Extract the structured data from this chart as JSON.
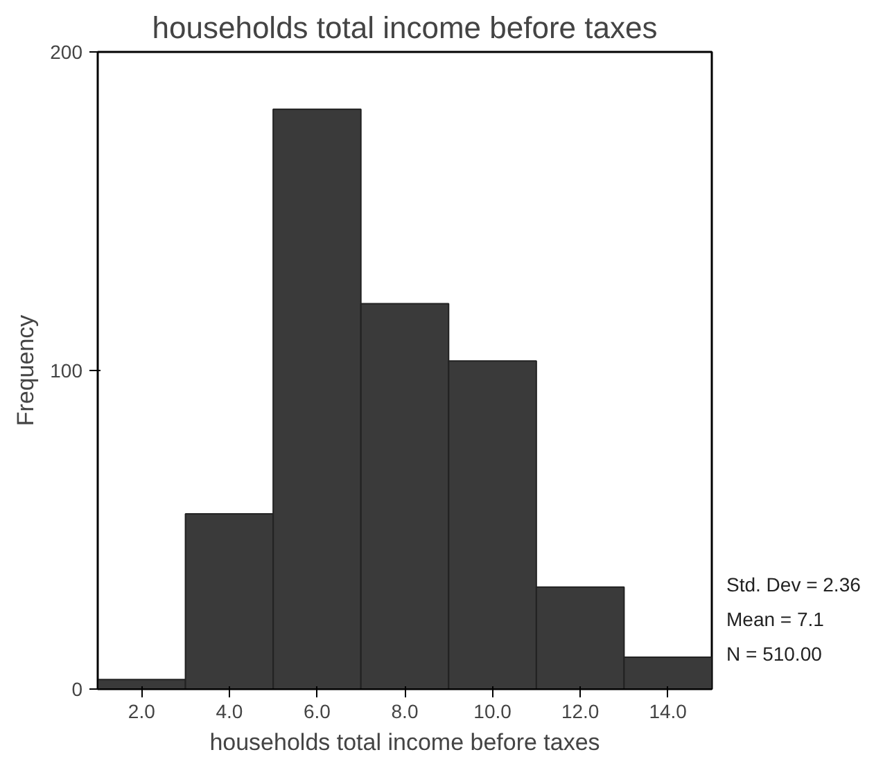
{
  "chart_data": {
    "type": "histogram",
    "title": "households total income before taxes",
    "xlabel": "households total income before taxes",
    "ylabel": "Frequency",
    "bins": [
      1,
      3,
      5,
      7,
      9,
      11,
      13,
      15
    ],
    "values": [
      3,
      55,
      182,
      121,
      103,
      32,
      10
    ],
    "color": "#3a3a3a",
    "xlim": [
      1,
      15
    ],
    "ylim": [
      0,
      200
    ],
    "xticks": [
      {
        "value": 2,
        "label": "2.0"
      },
      {
        "value": 4,
        "label": "4.0"
      },
      {
        "value": 6,
        "label": "6.0"
      },
      {
        "value": 8,
        "label": "8.0"
      },
      {
        "value": 10,
        "label": "10.0"
      },
      {
        "value": 12,
        "label": "12.0"
      },
      {
        "value": 14,
        "label": "14.0"
      }
    ],
    "yticks": [
      0,
      100,
      200
    ],
    "grid": false,
    "annotations": [
      "Std. Dev = 2.36",
      "Mean = 7.1",
      "N = 510.00"
    ]
  }
}
